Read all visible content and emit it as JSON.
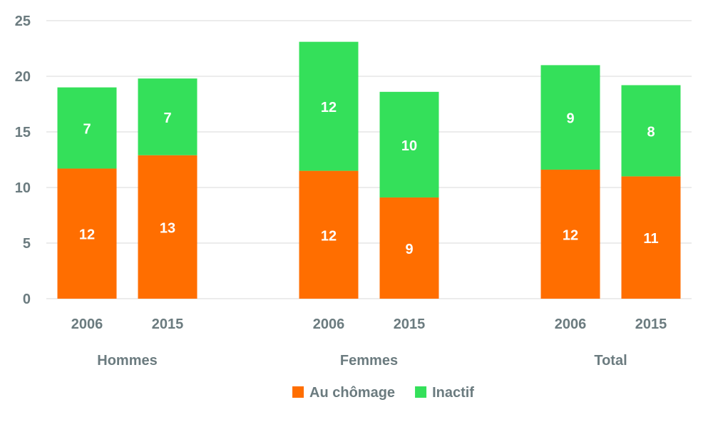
{
  "chart_data": {
    "type": "bar",
    "stacked": true,
    "groups": [
      {
        "name": "Hommes",
        "categories": [
          "2006",
          "2015"
        ]
      },
      {
        "name": "Femmes",
        "categories": [
          "2006",
          "2015"
        ]
      },
      {
        "name": "Total",
        "categories": [
          "2006",
          "2015"
        ]
      }
    ],
    "series": [
      {
        "name": "Au chômage",
        "color": "#ff6e00",
        "values": [
          11.7,
          12.9,
          11.5,
          9.1,
          11.6,
          11.0
        ],
        "labels": [
          "12",
          "13",
          "12",
          "9",
          "12",
          "11"
        ]
      },
      {
        "name": "Inactif",
        "color": "#34e05a",
        "values": [
          7.3,
          6.9,
          11.6,
          9.5,
          9.4,
          8.2
        ],
        "labels": [
          "7",
          "7",
          "12",
          "10",
          "9",
          "8"
        ]
      }
    ],
    "ylim": [
      0,
      25
    ],
    "yticks": [
      0,
      5,
      10,
      15,
      20,
      25
    ],
    "grid": true,
    "legend": "bottom-center"
  }
}
